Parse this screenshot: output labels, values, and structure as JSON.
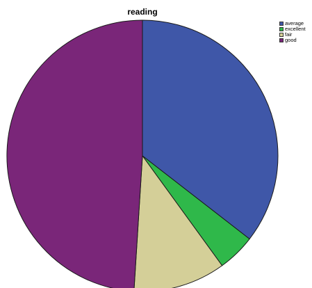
{
  "chart_data": {
    "type": "pie",
    "title": "reading",
    "categories": [
      "average",
      "excellent",
      "fair",
      "good"
    ],
    "values": [
      35.5,
      4.5,
      11.0,
      49.0
    ],
    "colors": [
      "#3f57a8",
      "#2fb84a",
      "#d4cf98",
      "#7a2679"
    ],
    "legend": "top-right",
    "start_angle_deg": 0,
    "direction": "clockwise"
  }
}
